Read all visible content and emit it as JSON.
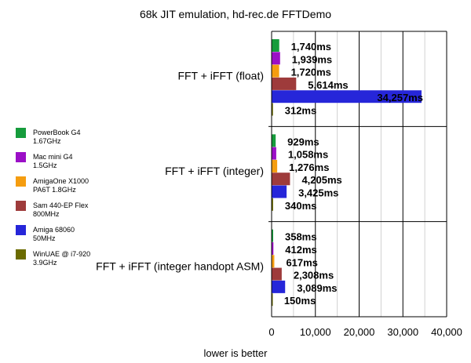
{
  "chart_data": {
    "type": "bar",
    "orientation": "horizontal",
    "title": "68k JIT emulation, hd-rec.de FFTDemo",
    "xlabel": "lower is better",
    "ylabel": "",
    "xlim": [
      0,
      40000
    ],
    "xticks": [
      0,
      10000,
      20000,
      30000,
      40000
    ],
    "xtick_labels": [
      "0",
      "10,000",
      "20,000",
      "30,000",
      "40,000"
    ],
    "grid": "vertical",
    "legend_position": "left",
    "categories": [
      "FFT + iFFT (float)",
      "FFT + iFFT (integer)",
      "FFT + iFFT (integer handopt ASM)"
    ],
    "series": [
      {
        "name": "PowerBook G4 1.67GHz",
        "legend_lines": [
          "PowerBook G4",
          "1.67GHz"
        ],
        "color": "#169c3c",
        "values": [
          1740,
          929,
          358
        ],
        "labels": [
          "1,740ms",
          "929ms",
          "358ms"
        ]
      },
      {
        "name": "Mac mini G4 1.5GHz",
        "legend_lines": [
          "Mac mini G4",
          "1.5GHz"
        ],
        "color": "#9b0fc7",
        "values": [
          1939,
          1058,
          412
        ],
        "labels": [
          "1,939ms",
          "1,058ms",
          "412ms"
        ]
      },
      {
        "name": "AmigaOne X1000 PA6T 1.8GHz",
        "legend_lines": [
          "AmigaOne X1000",
          "PA6T 1.8GHz"
        ],
        "color": "#f59d10",
        "values": [
          1720,
          1276,
          617
        ],
        "labels": [
          "1,720ms",
          "1,276ms",
          "617ms"
        ]
      },
      {
        "name": "Sam 440-EP Flex 800MHz",
        "legend_lines": [
          "Sam 440-EP Flex",
          "800MHz"
        ],
        "color": "#9e3b3b",
        "values": [
          5614,
          4205,
          2308
        ],
        "labels": [
          "5,614ms",
          "4,205ms",
          "2,308ms"
        ]
      },
      {
        "name": "Amiga 68060 50MHz",
        "legend_lines": [
          "Amiga 68060",
          "50MHz"
        ],
        "color": "#2626d9",
        "values": [
          34257,
          3425,
          3089
        ],
        "labels": [
          "34,257ms",
          "3,425ms",
          "3,089ms"
        ]
      },
      {
        "name": "WinUAE @ i7-920 3.9GHz",
        "legend_lines": [
          "WinUAE @ i7-920",
          "3.9GHz"
        ],
        "color": "#6b6b00",
        "values": [
          312,
          340,
          150
        ],
        "labels": [
          "312ms",
          "340ms",
          "150ms"
        ]
      }
    ]
  }
}
